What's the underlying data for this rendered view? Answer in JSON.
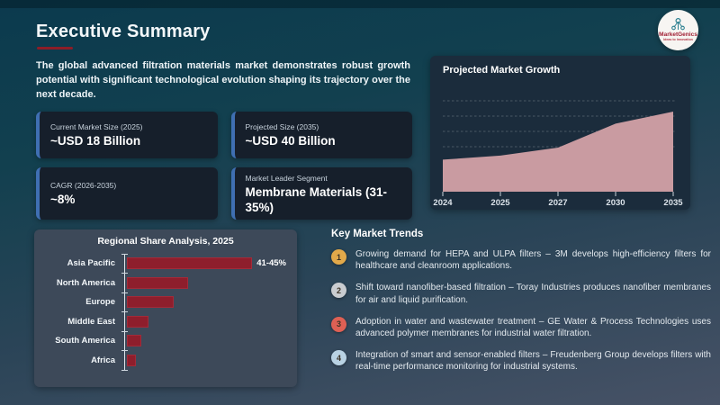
{
  "slide": {
    "title": "Executive Summary",
    "intro": "The global advanced filtration materials market demonstrates robust growth potential with significant technological evolution shaping its trajectory over the next decade."
  },
  "logo": {
    "name": "MarketGenics",
    "tagline": "Ideas to Innovation"
  },
  "stats": [
    {
      "label": "Current Market Size (2025)",
      "value": "~USD 18 Billion"
    },
    {
      "label": "Projected Size (2035)",
      "value": "~USD 40 Billion"
    },
    {
      "label": "CAGR (2026-2035)",
      "value": "~8%"
    },
    {
      "label": "Market Leader Segment",
      "value": "Membrane Materials (31-35%)"
    }
  ],
  "trends": {
    "heading": "Key Market Trends",
    "items": [
      {
        "number": "1",
        "color": "#e2a94a",
        "text": "Growing demand for HEPA and ULPA filters – 3M develops high-efficiency filters for healthcare and cleanroom applications."
      },
      {
        "number": "2",
        "color": "#c9ccd0",
        "text": "Shift toward nanofiber-based filtration – Toray Industries produces nanofiber membranes for air and liquid purification."
      },
      {
        "number": "3",
        "color": "#de6054",
        "text": "Adoption in water and wastewater treatment – GE Water & Process Technologies uses advanced polymer membranes for industrial water filtration."
      },
      {
        "number": "4",
        "color": "#b9d2e3",
        "text": "Integration of smart and sensor-enabled filters – Freudenberg Group develops filters with real-time performance monitoring for industrial systems."
      }
    ]
  },
  "chart_data": [
    {
      "type": "bar",
      "title": "Regional Share Analysis, 2025",
      "orientation": "horizontal",
      "categories": [
        "Asia Pacific",
        "North America",
        "Europe",
        "Middle East",
        "South America",
        "Africa"
      ],
      "values": [
        43,
        17,
        13,
        6,
        4,
        2.5
      ],
      "bar_labels": [
        "41-45%",
        "",
        "",
        "",
        "",
        ""
      ],
      "xlim": [
        0,
        45
      ],
      "bar_color": "#8e1e2c",
      "grid": false,
      "legend": false
    },
    {
      "type": "area",
      "title": "Projected Market Growth",
      "x": [
        "2024",
        "2025",
        "2027",
        "2030",
        "2035"
      ],
      "values": [
        16,
        18,
        22,
        34,
        40
      ],
      "ylim": [
        0,
        40
      ],
      "fill_color": "#c99ba1",
      "grid": "dashed-horizontal",
      "legend": false
    }
  ],
  "colors": {
    "background_top": "#0b3a4e",
    "background_bottom": "#475266",
    "accent_red": "#8c1d28",
    "card_background": "#161f2b",
    "card_border_blue": "#3f6fb2",
    "bar_panel": "#3d4959",
    "area_panel": "#1b2c3c"
  }
}
